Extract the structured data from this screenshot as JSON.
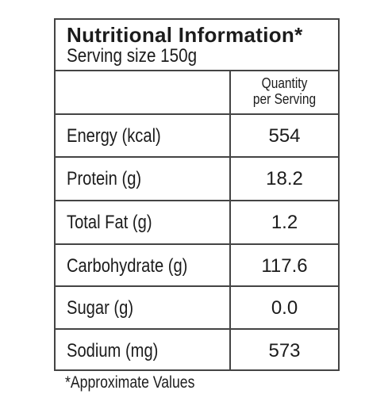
{
  "table": {
    "title": "Nutritional Information*",
    "serving_size": "Serving size 150g",
    "column_header_line1": "Quantity",
    "column_header_line2": "per Serving",
    "rows": [
      {
        "label": "Energy (kcal)",
        "value": "554"
      },
      {
        "label": "Protein (g)",
        "value": "18.2"
      },
      {
        "label": "Total Fat (g)",
        "value": "1.2"
      },
      {
        "label": "Carbohydrate (g)",
        "value": "117.6"
      },
      {
        "label": "Sugar (g)",
        "value": "0.0"
      },
      {
        "label": "Sodium (mg)",
        "value": "573"
      }
    ]
  },
  "footnote": "*Approximate Values"
}
